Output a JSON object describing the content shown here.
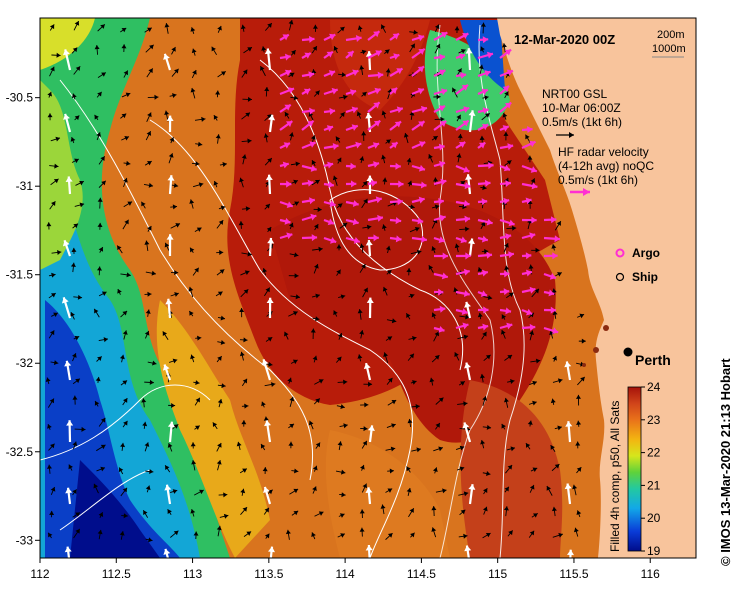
{
  "map": {
    "title": "12-Mar-2020 00Z",
    "isobath_legend": [
      "200m",
      "1000m"
    ],
    "lon_ticks": [
      "112",
      "112.5",
      "113",
      "113.5",
      "114",
      "114.5",
      "115",
      "115.5",
      "116"
    ],
    "lat_ticks": [
      "-30.5",
      "-31",
      "-31.5",
      "-32",
      "-32.5",
      "-33"
    ],
    "lon_range": [
      112,
      116.3
    ],
    "lat_range": [
      -33.1,
      -30.05
    ],
    "city_label": "Perth",
    "credit": "© IMOS 13-Mar-2020 21:13 Hobart",
    "colors": {
      "land": "#f8c49c",
      "warm": "#b81c0a",
      "gsl_arrow": "#000000",
      "hf_arrow": "#ff2fd2",
      "contour": "#ffffff"
    }
  },
  "legend": {
    "gsl_title": "NRT00 GSL",
    "gsl_time": "10-Mar 06:00Z",
    "gsl_scale": "0.5m/s (1kt 6h)",
    "hf_title": "HF radar velocity",
    "hf_sub": "(4-12h avg) noQC",
    "hf_scale": "0.5m/s (1kt 6h)",
    "argo_label": "Argo",
    "ship_label": "Ship"
  },
  "colorbar": {
    "label": "Filled 4h comp, p50, All Sats",
    "ticks": [
      "24",
      "23",
      "22",
      "21",
      "20",
      "19"
    ],
    "min": 19,
    "max": 24
  }
}
